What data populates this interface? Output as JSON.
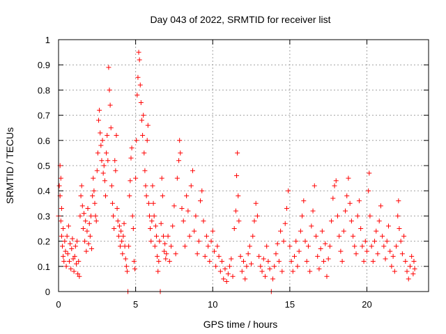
{
  "chart_data": {
    "type": "scatter",
    "title": "Day 043 of 2022, SRMTID for receiver list",
    "xlabel": "GPS time / hours",
    "ylabel": "SRMTID / TECUs",
    "xlim": [
      0,
      24
    ],
    "ylim": [
      0,
      1
    ],
    "x_ticks": [
      0,
      5,
      10,
      15,
      20
    ],
    "y_ticks": [
      0,
      0.1,
      0.2,
      0.3,
      0.4,
      0.5,
      0.6,
      0.7,
      0.8,
      0.9,
      1
    ],
    "x_tick_labels": [
      "0",
      "5",
      "10",
      "15",
      "20"
    ],
    "y_tick_labels": [
      "0",
      "0.1",
      "0.2",
      "0.3",
      "0.4",
      "0.5",
      "0.6",
      "0.7",
      "0.8",
      "0.9",
      "1"
    ],
    "grid": true,
    "marker": "+",
    "color": "#ff0000",
    "series": [
      {
        "name": "SRMTID",
        "points": [
          [
            0.0,
            0.3
          ],
          [
            0.05,
            0.42
          ],
          [
            0.1,
            0.5
          ],
          [
            0.1,
            0.38
          ],
          [
            0.15,
            0.45
          ],
          [
            0.15,
            0.28
          ],
          [
            0.2,
            0.22
          ],
          [
            0.2,
            0.33
          ],
          [
            0.25,
            0.18
          ],
          [
            0.3,
            0.14
          ],
          [
            0.3,
            0.25
          ],
          [
            0.35,
            0.12
          ],
          [
            0.4,
            0.2
          ],
          [
            0.45,
            0.16
          ],
          [
            0.5,
            0.1
          ],
          [
            0.55,
            0.22
          ],
          [
            0.6,
            0.15
          ],
          [
            0.65,
            0.26
          ],
          [
            0.7,
            0.12
          ],
          [
            0.75,
            0.19
          ],
          [
            0.8,
            0.09
          ],
          [
            0.85,
            0.17
          ],
          [
            0.9,
            0.21
          ],
          [
            0.95,
            0.13
          ],
          [
            1.0,
            0.08
          ],
          [
            1.05,
            0.14
          ],
          [
            1.1,
            0.18
          ],
          [
            1.15,
            0.11
          ],
          [
            1.2,
            0.2
          ],
          [
            1.25,
            0.07
          ],
          [
            1.3,
            0.12
          ],
          [
            1.35,
            0.06
          ],
          [
            1.4,
            0.3
          ],
          [
            1.45,
            0.38
          ],
          [
            1.5,
            0.42
          ],
          [
            1.55,
            0.34
          ],
          [
            1.6,
            0.25
          ],
          [
            1.65,
            0.31
          ],
          [
            1.7,
            0.2
          ],
          [
            1.75,
            0.28
          ],
          [
            1.8,
            0.16
          ],
          [
            1.85,
            0.24
          ],
          [
            1.9,
            0.33
          ],
          [
            1.95,
            0.19
          ],
          [
            2.0,
            0.27
          ],
          [
            2.05,
            0.22
          ],
          [
            2.1,
            0.3
          ],
          [
            2.15,
            0.17
          ],
          [
            2.2,
            0.38
          ],
          [
            2.25,
            0.45
          ],
          [
            2.3,
            0.4
          ],
          [
            2.35,
            0.35
          ],
          [
            2.4,
            0.3
          ],
          [
            2.45,
            0.28
          ],
          [
            2.5,
            0.48
          ],
          [
            2.55,
            0.55
          ],
          [
            2.6,
            0.68
          ],
          [
            2.65,
            0.72
          ],
          [
            2.7,
            0.63
          ],
          [
            2.75,
            0.58
          ],
          [
            2.8,
            0.52
          ],
          [
            2.85,
            0.6
          ],
          [
            2.9,
            0.47
          ],
          [
            2.95,
            0.5
          ],
          [
            3.0,
            0.44
          ],
          [
            3.05,
            0.38
          ],
          [
            3.1,
            0.55
          ],
          [
            3.15,
            0.62
          ],
          [
            3.2,
            0.52
          ],
          [
            3.25,
            0.89
          ],
          [
            3.3,
            0.8
          ],
          [
            3.35,
            0.74
          ],
          [
            3.4,
            0.65
          ],
          [
            3.45,
            0.42
          ],
          [
            3.5,
            0.35
          ],
          [
            3.55,
            0.3
          ],
          [
            3.6,
            0.25
          ],
          [
            3.65,
            0.52
          ],
          [
            3.7,
            0.48
          ],
          [
            3.75,
            0.62
          ],
          [
            3.8,
            0.33
          ],
          [
            3.85,
            0.28
          ],
          [
            3.9,
            0.22
          ],
          [
            3.95,
            0.26
          ],
          [
            4.0,
            0.18
          ],
          [
            4.05,
            0.24
          ],
          [
            4.1,
            0.2
          ],
          [
            4.15,
            0.15
          ],
          [
            4.2,
            0.22
          ],
          [
            4.25,
            0.27
          ],
          [
            4.3,
            0.18
          ],
          [
            4.35,
            0.13
          ],
          [
            4.4,
            0.1
          ],
          [
            4.45,
            0.08
          ],
          [
            4.5,
            0.0
          ],
          [
            4.55,
            0.18
          ],
          [
            4.6,
            0.38
          ],
          [
            4.65,
            0.44
          ],
          [
            4.7,
            0.53
          ],
          [
            4.75,
            0.57
          ],
          [
            4.8,
            0.3
          ],
          [
            4.85,
            0.25
          ],
          [
            4.9,
            0.12
          ],
          [
            4.95,
            0.09
          ],
          [
            5.0,
            0.45
          ],
          [
            5.05,
            0.6
          ],
          [
            5.1,
            0.78
          ],
          [
            5.15,
            0.85
          ],
          [
            5.2,
            0.95
          ],
          [
            5.25,
            0.92
          ],
          [
            5.3,
            0.82
          ],
          [
            5.35,
            0.75
          ],
          [
            5.4,
            0.68
          ],
          [
            5.45,
            0.62
          ],
          [
            5.5,
            0.7
          ],
          [
            5.55,
            0.55
          ],
          [
            5.6,
            0.48
          ],
          [
            5.65,
            0.42
          ],
          [
            5.7,
            0.38
          ],
          [
            5.75,
            0.6
          ],
          [
            5.8,
            0.66
          ],
          [
            5.85,
            0.35
          ],
          [
            5.9,
            0.3
          ],
          [
            5.95,
            0.25
          ],
          [
            6.0,
            0.2
          ],
          [
            6.05,
            0.28
          ],
          [
            6.1,
            0.42
          ],
          [
            6.15,
            0.35
          ],
          [
            6.2,
            0.3
          ],
          [
            6.25,
            0.18
          ],
          [
            6.3,
            0.26
          ],
          [
            6.35,
            0.22
          ],
          [
            6.4,
            0.14
          ],
          [
            6.45,
            0.08
          ],
          [
            6.5,
            0.12
          ],
          [
            6.55,
            0.2
          ],
          [
            6.6,
            0.0
          ],
          [
            6.65,
            0.27
          ],
          [
            6.7,
            0.45
          ],
          [
            6.75,
            0.38
          ],
          [
            6.8,
            0.22
          ],
          [
            6.85,
            0.16
          ],
          [
            6.9,
            0.19
          ],
          [
            6.95,
            0.13
          ],
          [
            7.0,
            0.15
          ],
          [
            7.1,
            0.22
          ],
          [
            7.2,
            0.12
          ],
          [
            7.3,
            0.18
          ],
          [
            7.4,
            0.26
          ],
          [
            7.5,
            0.34
          ],
          [
            7.6,
            0.15
          ],
          [
            7.7,
            0.45
          ],
          [
            7.8,
            0.52
          ],
          [
            7.85,
            0.6
          ],
          [
            7.9,
            0.55
          ],
          [
            8.0,
            0.33
          ],
          [
            8.1,
            0.28
          ],
          [
            8.2,
            0.18
          ],
          [
            8.3,
            0.38
          ],
          [
            8.4,
            0.32
          ],
          [
            8.5,
            0.22
          ],
          [
            8.6,
            0.42
          ],
          [
            8.7,
            0.48
          ],
          [
            8.8,
            0.24
          ],
          [
            8.9,
            0.3
          ],
          [
            9.0,
            0.15
          ],
          [
            9.1,
            0.2
          ],
          [
            9.2,
            0.36
          ],
          [
            9.3,
            0.4
          ],
          [
            9.4,
            0.28
          ],
          [
            9.5,
            0.14
          ],
          [
            9.6,
            0.22
          ],
          [
            9.7,
            0.18
          ],
          [
            9.8,
            0.12
          ],
          [
            9.9,
            0.2
          ],
          [
            10.0,
            0.24
          ],
          [
            10.1,
            0.16
          ],
          [
            10.2,
            0.1
          ],
          [
            10.3,
            0.18
          ],
          [
            10.4,
            0.14
          ],
          [
            10.5,
            0.08
          ],
          [
            10.6,
            0.12
          ],
          [
            10.7,
            0.05
          ],
          [
            10.8,
            0.09
          ],
          [
            10.9,
            0.04
          ],
          [
            11.0,
            0.07
          ],
          [
            11.1,
            0.1
          ],
          [
            11.2,
            0.13
          ],
          [
            11.3,
            0.06
          ],
          [
            11.4,
            0.25
          ],
          [
            11.5,
            0.32
          ],
          [
            11.55,
            0.46
          ],
          [
            11.6,
            0.55
          ],
          [
            11.65,
            0.38
          ],
          [
            11.7,
            0.28
          ],
          [
            11.8,
            0.14
          ],
          [
            11.9,
            0.08
          ],
          [
            12.0,
            0.12
          ],
          [
            12.1,
            0.05
          ],
          [
            12.2,
            0.1
          ],
          [
            12.3,
            0.15
          ],
          [
            12.4,
            0.18
          ],
          [
            12.5,
            0.11
          ],
          [
            12.6,
            0.22
          ],
          [
            12.7,
            0.28
          ],
          [
            12.8,
            0.35
          ],
          [
            12.9,
            0.3
          ],
          [
            13.0,
            0.14
          ],
          [
            13.1,
            0.1
          ],
          [
            13.2,
            0.08
          ],
          [
            13.3,
            0.13
          ],
          [
            13.4,
            0.06
          ],
          [
            13.5,
            0.18
          ],
          [
            13.6,
            0.12
          ],
          [
            13.7,
            0.09
          ],
          [
            13.8,
            0.0
          ],
          [
            13.9,
            0.05
          ],
          [
            14.0,
            0.1
          ],
          [
            14.1,
            0.15
          ],
          [
            14.2,
            0.19
          ],
          [
            14.3,
            0.12
          ],
          [
            14.4,
            0.24
          ],
          [
            14.5,
            0.08
          ],
          [
            14.6,
            0.2
          ],
          [
            14.7,
            0.27
          ],
          [
            14.8,
            0.33
          ],
          [
            14.9,
            0.4
          ],
          [
            15.0,
            0.18
          ],
          [
            15.1,
            0.12
          ],
          [
            15.2,
            0.08
          ],
          [
            15.3,
            0.14
          ],
          [
            15.4,
            0.2
          ],
          [
            15.5,
            0.1
          ],
          [
            15.6,
            0.16
          ],
          [
            15.7,
            0.24
          ],
          [
            15.8,
            0.3
          ],
          [
            15.9,
            0.36
          ],
          [
            16.0,
            0.2
          ],
          [
            16.1,
            0.12
          ],
          [
            16.2,
            0.18
          ],
          [
            16.3,
            0.08
          ],
          [
            16.4,
            0.26
          ],
          [
            16.5,
            0.32
          ],
          [
            16.6,
            0.42
          ],
          [
            16.7,
            0.22
          ],
          [
            16.8,
            0.14
          ],
          [
            16.9,
            0.09
          ],
          [
            17.0,
            0.17
          ],
          [
            17.1,
            0.24
          ],
          [
            17.2,
            0.12
          ],
          [
            17.3,
            0.19
          ],
          [
            17.4,
            0.06
          ],
          [
            17.5,
            0.13
          ],
          [
            17.6,
            0.18
          ],
          [
            17.7,
            0.28
          ],
          [
            17.8,
            0.37
          ],
          [
            17.9,
            0.42
          ],
          [
            18.0,
            0.44
          ],
          [
            18.1,
            0.3
          ],
          [
            18.2,
            0.22
          ],
          [
            18.3,
            0.16
          ],
          [
            18.4,
            0.12
          ],
          [
            18.5,
            0.24
          ],
          [
            18.6,
            0.32
          ],
          [
            18.7,
            0.38
          ],
          [
            18.8,
            0.45
          ],
          [
            18.9,
            0.35
          ],
          [
            19.0,
            0.28
          ],
          [
            19.1,
            0.22
          ],
          [
            19.2,
            0.18
          ],
          [
            19.3,
            0.15
          ],
          [
            19.4,
            0.3
          ],
          [
            19.5,
            0.36
          ],
          [
            19.6,
            0.25
          ],
          [
            19.7,
            0.18
          ],
          [
            19.8,
            0.12
          ],
          [
            19.9,
            0.2
          ],
          [
            20.0,
            0.16
          ],
          [
            20.1,
            0.4
          ],
          [
            20.15,
            0.47
          ],
          [
            20.2,
            0.3
          ],
          [
            20.3,
            0.18
          ],
          [
            20.4,
            0.12
          ],
          [
            20.5,
            0.2
          ],
          [
            20.6,
            0.24
          ],
          [
            20.7,
            0.15
          ],
          [
            20.8,
            0.28
          ],
          [
            20.9,
            0.34
          ],
          [
            21.0,
            0.22
          ],
          [
            21.1,
            0.18
          ],
          [
            21.2,
            0.13
          ],
          [
            21.3,
            0.2
          ],
          [
            21.4,
            0.26
          ],
          [
            21.5,
            0.16
          ],
          [
            21.6,
            0.1
          ],
          [
            21.7,
            0.14
          ],
          [
            21.8,
            0.08
          ],
          [
            21.9,
            0.18
          ],
          [
            22.0,
            0.3
          ],
          [
            22.05,
            0.36
          ],
          [
            22.1,
            0.25
          ],
          [
            22.2,
            0.2
          ],
          [
            22.3,
            0.15
          ],
          [
            22.4,
            0.22
          ],
          [
            22.5,
            0.12
          ],
          [
            22.6,
            0.08
          ],
          [
            22.7,
            0.05
          ],
          [
            22.8,
            0.1
          ],
          [
            22.9,
            0.14
          ],
          [
            23.0,
            0.07
          ],
          [
            23.05,
            0.12
          ],
          [
            23.1,
            0.09
          ]
        ]
      }
    ]
  }
}
